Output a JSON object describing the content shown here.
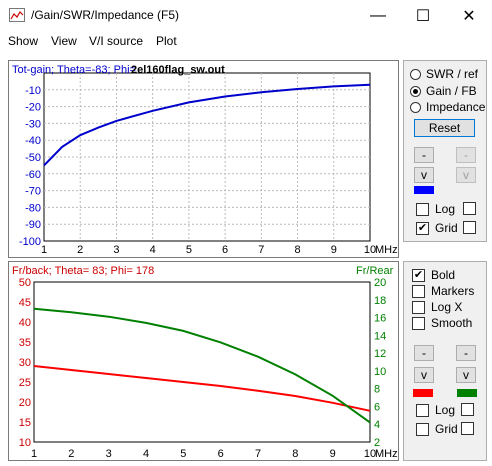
{
  "window": {
    "title": "/Gain/SWR/Impedance (F5)",
    "minimize_glyph": "—",
    "maximize_glyph": "☐",
    "close_glyph": "✕"
  },
  "menu": [
    "Show",
    "View",
    "V/I source",
    "Plot"
  ],
  "top_plot": {
    "header": "Tot-gain; Theta=-83; Phi=",
    "file_label": "2el160flag_sw.out",
    "x_unit": "MHz"
  },
  "bottom_plot": {
    "header": "Fr/back; Theta= 83; Phi= 178",
    "right_axis_title": "Fr/Rear",
    "x_unit": "MHz"
  },
  "panel_top": {
    "radios": [
      {
        "label": "SWR / ref",
        "checked": false
      },
      {
        "label": "Gain / FB",
        "checked": true
      },
      {
        "label": "Impedance",
        "checked": false
      }
    ],
    "reset_label": "Reset",
    "up_glyph": "-",
    "down_glyph": "v",
    "log_label": "Log",
    "log_checked": false,
    "grid_label": "Grid",
    "grid_checked": true,
    "check_glyph": "✔",
    "swatch_color": "#0000ff"
  },
  "panel_bottom": {
    "options": [
      {
        "label": "Bold",
        "checked": true
      },
      {
        "label": "Markers",
        "checked": false
      },
      {
        "label": "Log X",
        "checked": false
      },
      {
        "label": "Smooth",
        "checked": false
      }
    ],
    "up_glyph": "-",
    "down_glyph": "v",
    "left_swatch_color": "#ff0000",
    "right_swatch_color": "#008000",
    "log_label": "Log",
    "log_checked": false,
    "grid_label": "Grid",
    "grid_checked": false,
    "check_glyph": "✔"
  },
  "chart_data": [
    {
      "type": "line",
      "header": "Tot-gain; Theta=-83; Phi=",
      "x_range": [
        1,
        10
      ],
      "x_ticks": [
        "1",
        "2",
        "3",
        "4",
        "5",
        "6",
        "7",
        "8",
        "9",
        "10"
      ],
      "x_unit": "MHz",
      "y_range": [
        -100,
        0
      ],
      "y_ticks": [
        "-10",
        "-20",
        "-30",
        "-40",
        "-50",
        "-60",
        "-70",
        "-80",
        "-90",
        "-100"
      ],
      "grid": true,
      "series": [
        {
          "color": "#0000cc",
          "x": [
            1,
            1.5,
            2,
            2.5,
            3,
            4,
            5,
            6,
            7,
            8,
            9,
            10
          ],
          "values": [
            -55,
            -44,
            -37,
            -32.5,
            -28.5,
            -22.5,
            -17.5,
            -14,
            -11.5,
            -9.5,
            -8,
            -7
          ]
        }
      ]
    },
    {
      "type": "line",
      "header": "Fr/back; Theta= 83; Phi= 178",
      "x_range": [
        1,
        10
      ],
      "x_ticks": [
        "1",
        "2",
        "3",
        "4",
        "5",
        "6",
        "7",
        "8",
        "9",
        "10"
      ],
      "x_unit": "MHz",
      "y_left_range": [
        10,
        50
      ],
      "y_left_ticks": [
        "50",
        "45",
        "40",
        "35",
        "30",
        "25",
        "20",
        "15",
        "10"
      ],
      "y_right_range": [
        2,
        20
      ],
      "y_right_ticks": [
        "20",
        "18",
        "16",
        "14",
        "12",
        "10",
        "8",
        "6",
        "4",
        "2"
      ],
      "right_axis_title": "Fr/Rear",
      "grid": false,
      "series": [
        {
          "axis": "left",
          "color": "#ff0000",
          "x": [
            1,
            2,
            3,
            4,
            5,
            6,
            7,
            8,
            9,
            10
          ],
          "values": [
            29,
            28,
            27,
            26,
            25,
            24,
            22.8,
            21.5,
            19.8,
            17.8
          ]
        },
        {
          "axis": "right",
          "color": "#008000",
          "x": [
            1,
            2,
            3,
            4,
            5,
            6,
            7,
            8,
            9,
            10
          ],
          "values": [
            17,
            16.6,
            16.1,
            15.4,
            14.5,
            13.2,
            11.6,
            9.6,
            7.2,
            4.2
          ]
        }
      ]
    }
  ]
}
